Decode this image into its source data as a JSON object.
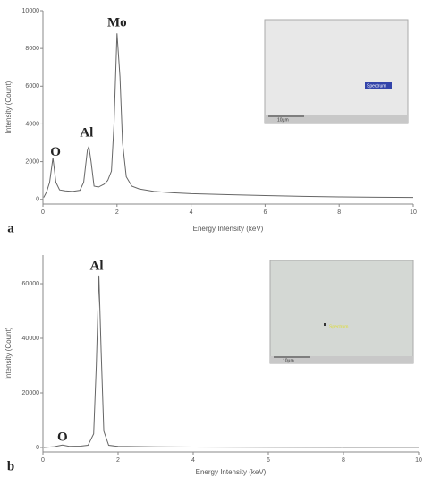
{
  "chart_data": [
    {
      "type": "line",
      "panel_label": "a",
      "xlabel": "Energy Intensity (keV)",
      "ylabel": "Intensity (Count)",
      "xlim": [
        0,
        10
      ],
      "ylim": [
        -250,
        10000
      ],
      "xticks": [
        0,
        2,
        4,
        6,
        8,
        10
      ],
      "yticks": [
        0,
        2000,
        4000,
        6000,
        8000,
        10000
      ],
      "series": [
        {
          "color": "#666666",
          "x": [
            0.02,
            0.1,
            0.18,
            0.27,
            0.35,
            0.45,
            0.6,
            0.8,
            1.0,
            1.1,
            1.2,
            1.24,
            1.3,
            1.38,
            1.5,
            1.65,
            1.75,
            1.85,
            1.92,
            2.0,
            2.08,
            2.15,
            2.25,
            2.4,
            2.6,
            3.0,
            3.5,
            4.0,
            5.0,
            6.0,
            7.0,
            8.0,
            9.0,
            10.0
          ],
          "values": [
            100,
            400,
            900,
            2200,
            900,
            500,
            450,
            420,
            480,
            900,
            2600,
            2800,
            2000,
            700,
            650,
            800,
            1000,
            1500,
            4000,
            8800,
            6500,
            3000,
            1200,
            700,
            550,
            420,
            350,
            300,
            250,
            200,
            160,
            130,
            110,
            100
          ]
        }
      ],
      "annotations": [
        {
          "text": "Mo",
          "x": 2.0,
          "y": 9330
        },
        {
          "text": "Al",
          "x": 1.18,
          "y": 3486
        },
        {
          "text": "O",
          "x": 0.34,
          "y": 2480
        }
      ],
      "inset_labels": [
        "Spectrum",
        "10µm"
      ]
    },
    {
      "type": "line",
      "panel_label": "b",
      "xlabel": "Energy Intensity (keV)",
      "ylabel": "Intensity (Count)",
      "xlim": [
        0,
        10
      ],
      "ylim": [
        -1640,
        70500
      ],
      "xticks": [
        0,
        2,
        4,
        6,
        8,
        10
      ],
      "yticks": [
        0,
        20000,
        40000,
        60000
      ],
      "series": [
        {
          "color": "#666666",
          "x": [
            0.02,
            0.3,
            0.52,
            0.7,
            1.0,
            1.2,
            1.35,
            1.42,
            1.49,
            1.55,
            1.62,
            1.75,
            2.0,
            3.0,
            4.0,
            6.0,
            8.0,
            10.0
          ],
          "values": [
            0,
            300,
            900,
            400,
            500,
            800,
            5000,
            30000,
            63000,
            35000,
            6000,
            800,
            400,
            250,
            150,
            100,
            60,
            40
          ]
        }
      ],
      "annotations": [
        {
          "text": "Al",
          "x": 1.43,
          "y": 66260
        },
        {
          "text": "O",
          "x": 0.52,
          "y": 3600
        }
      ],
      "inset_labels": [
        "Spectrum",
        "10µm"
      ]
    }
  ]
}
